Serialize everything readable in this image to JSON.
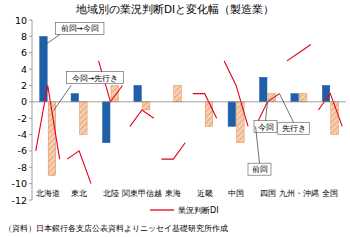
{
  "chart_data": {
    "type": "bar",
    "title": "地域別の業況判断DIと変化幅（製造業）",
    "categories": [
      "北海道",
      "東北",
      "北陸",
      "関東甲信越",
      "東海",
      "近畿",
      "中国",
      "四国",
      "九州・沖縄",
      "全国"
    ],
    "series": [
      {
        "name": "前回→今回",
        "type": "bar",
        "color": "#1f5fa8",
        "values": [
          8,
          1,
          -5,
          2,
          0,
          0,
          -3,
          3,
          1,
          2
        ]
      },
      {
        "name": "今回→先行き",
        "type": "bar",
        "color": "#f6cfb2",
        "values": [
          -9,
          -4,
          2,
          -1,
          2,
          -3,
          -5,
          1,
          1,
          -4
        ]
      },
      {
        "name": "業況判断DI",
        "type": "line",
        "color": "#e3001b",
        "values": [
          [
            -6,
            2,
            -7
          ],
          [
            -7,
            -6,
            -10
          ],
          [
            5,
            0,
            2
          ],
          [
            -3,
            -1,
            -2
          ],
          [
            -7,
            -7,
            -5
          ],
          [
            1,
            1,
            -2
          ],
          [
            5,
            2,
            -3
          ],
          [
            -3,
            0,
            1
          ],
          [
            5,
            6,
            7
          ],
          [
            -1,
            1,
            -3
          ]
        ]
      }
    ],
    "ylim": [
      -12,
      10
    ],
    "yticks": [
      -12,
      -10,
      -8,
      -6,
      -4,
      -2,
      0,
      2,
      4,
      6,
      8,
      10
    ],
    "grid": false,
    "legend": "bottom",
    "annotations": [
      "今回",
      "先行き",
      "前回"
    ],
    "source": "（資料）日本銀行各支店公表資料よりニッセイ基礎研究所作成"
  }
}
